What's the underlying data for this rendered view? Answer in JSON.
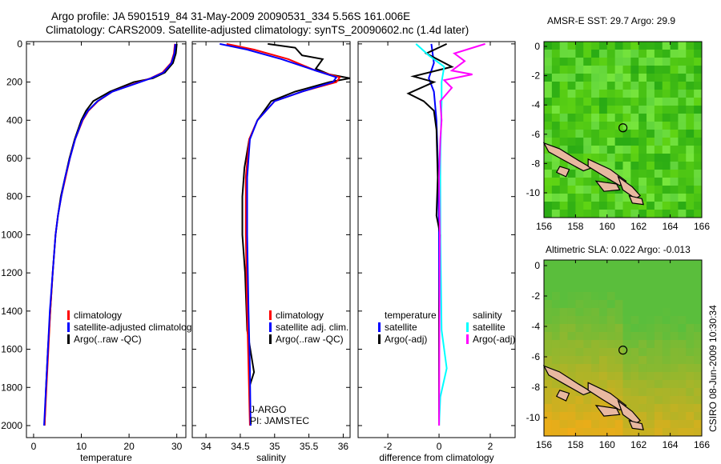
{
  "header": {
    "line1": "Argo profile: JA 5901519_84 31-May-2009 20090531_334 5.56S 161.006E",
    "line2": "Climatology: CARS2009. Satellite-adjusted climatology: synTS_20090602.nc (1.4d later)"
  },
  "footer": {
    "stamp": "CSIRO 08-Jun-2009 10:30:34"
  },
  "chart_data": [
    {
      "type": "line",
      "xlabel": "temperature",
      "xlim": [
        -1.5,
        31.9
      ],
      "ylim": [
        2063,
        -12
      ],
      "xticks": [
        0,
        10,
        20,
        30
      ],
      "yticks": [
        0,
        200,
        400,
        600,
        800,
        1000,
        1200,
        1400,
        1600,
        1800,
        2000
      ],
      "legend": [
        {
          "label": "climatology",
          "color": "#ff0000"
        },
        {
          "label": "satellite-adjusted climatology",
          "color": "#0000ff"
        },
        {
          "label": "Argo(..raw -QC)",
          "color": "#000000"
        }
      ],
      "series": [
        {
          "name": "Argo",
          "color": "#000000",
          "points": [
            [
              30,
              0
            ],
            [
              29.8,
              50
            ],
            [
              29.2,
              100
            ],
            [
              27.5,
              150
            ],
            [
              25,
              180
            ],
            [
              21,
              200
            ],
            [
              16,
              250
            ],
            [
              12.5,
              300
            ],
            [
              11,
              350
            ],
            [
              10,
              400
            ],
            [
              8.6,
              500
            ],
            [
              7.5,
              600
            ],
            [
              6.6,
              700
            ],
            [
              5.7,
              800
            ],
            [
              5.1,
              900
            ],
            [
              4.6,
              1000
            ],
            [
              4,
              1200
            ],
            [
              3.5,
              1400
            ],
            [
              3,
              1600
            ],
            [
              2.6,
              1800
            ],
            [
              2.3,
              2000
            ]
          ]
        },
        {
          "name": "climatology",
          "color": "#ff0000",
          "points": [
            [
              29.6,
              0
            ],
            [
              29.4,
              50
            ],
            [
              28.8,
              100
            ],
            [
              27,
              150
            ],
            [
              24.5,
              180
            ],
            [
              21,
              210
            ],
            [
              16.5,
              250
            ],
            [
              13.5,
              300
            ],
            [
              11.5,
              350
            ],
            [
              10.3,
              400
            ],
            [
              8.7,
              500
            ],
            [
              7.6,
              600
            ],
            [
              6.7,
              700
            ],
            [
              5.8,
              800
            ],
            [
              5.1,
              900
            ],
            [
              4.6,
              1000
            ],
            [
              4,
              1200
            ],
            [
              3.5,
              1400
            ],
            [
              3.1,
              1600
            ],
            [
              2.7,
              1800
            ],
            [
              2.3,
              2000
            ]
          ]
        },
        {
          "name": "satellite",
          "color": "#0000ff",
          "points": [
            [
              29.7,
              0
            ],
            [
              29.5,
              50
            ],
            [
              28.9,
              100
            ],
            [
              27.2,
              150
            ],
            [
              24.6,
              180
            ],
            [
              21.2,
              210
            ],
            [
              16.5,
              250
            ],
            [
              13.4,
              300
            ],
            [
              11.4,
              350
            ],
            [
              10.2,
              400
            ],
            [
              8.7,
              500
            ],
            [
              7.6,
              600
            ],
            [
              6.6,
              700
            ],
            [
              5.8,
              800
            ],
            [
              5.1,
              900
            ],
            [
              4.6,
              1000
            ],
            [
              4,
              1200
            ],
            [
              3.4,
              1400
            ],
            [
              3,
              1600
            ],
            [
              2.6,
              1800
            ],
            [
              2.2,
              2000
            ]
          ]
        }
      ]
    },
    {
      "type": "line",
      "xlabel": "salinity",
      "xlim": [
        33.8,
        36.1
      ],
      "ylim": [
        2063,
        -12
      ],
      "xticks": [
        34,
        34.5,
        35,
        35.5,
        36
      ],
      "legend": [
        {
          "label": "climatology",
          "color": "#ff0000"
        },
        {
          "label": "satellite adj. clim.",
          "color": "#0000ff"
        },
        {
          "label": "Argo(..raw -QC)",
          "color": "#000000"
        }
      ],
      "annotation": [
        "J-ARGO",
        "PI: JAMSTEC"
      ],
      "series": [
        {
          "name": "Argo",
          "color": "#000000",
          "points": [
            [
              34.9,
              0
            ],
            [
              35.3,
              20
            ],
            [
              35.4,
              60
            ],
            [
              35.7,
              80
            ],
            [
              35.6,
              130
            ],
            [
              35.8,
              160
            ],
            [
              36.1,
              180
            ],
            [
              35.8,
              200
            ],
            [
              35.3,
              250
            ],
            [
              34.95,
              300
            ],
            [
              34.75,
              400
            ],
            [
              34.63,
              500
            ],
            [
              34.56,
              650
            ],
            [
              34.53,
              800
            ],
            [
              34.53,
              1000
            ],
            [
              34.57,
              1200
            ],
            [
              34.6,
              1500
            ],
            [
              34.7,
              1720
            ],
            [
              34.63,
              1800
            ],
            [
              34.65,
              2000
            ]
          ]
        },
        {
          "name": "climatology",
          "color": "#ff0000",
          "points": [
            [
              34.3,
              0
            ],
            [
              34.7,
              30
            ],
            [
              35.2,
              80
            ],
            [
              35.6,
              140
            ],
            [
              35.95,
              175
            ],
            [
              35.9,
              200
            ],
            [
              35.4,
              250
            ],
            [
              35,
              300
            ],
            [
              34.75,
              400
            ],
            [
              34.63,
              500
            ],
            [
              34.58,
              700
            ],
            [
              34.58,
              1000
            ],
            [
              34.6,
              1400
            ],
            [
              34.62,
              1700
            ],
            [
              34.64,
              2000
            ]
          ]
        },
        {
          "name": "satellite",
          "color": "#0000ff",
          "points": [
            [
              34.2,
              0
            ],
            [
              34.6,
              30
            ],
            [
              35.1,
              80
            ],
            [
              35.6,
              140
            ],
            [
              35.9,
              175
            ],
            [
              35.85,
              200
            ],
            [
              35.4,
              250
            ],
            [
              35,
              300
            ],
            [
              34.75,
              400
            ],
            [
              34.64,
              500
            ],
            [
              34.6,
              700
            ],
            [
              34.6,
              1000
            ],
            [
              34.62,
              1400
            ],
            [
              34.64,
              1700
            ],
            [
              34.65,
              2000
            ]
          ]
        }
      ]
    },
    {
      "type": "line",
      "xlabel": "difference from climatology",
      "xlim": [
        -3.16,
        2.97
      ],
      "xticks": [
        -2,
        0,
        2
      ],
      "ylim": [
        2063,
        -12
      ],
      "legend": [
        {
          "label": "temperature",
          "color": null
        },
        {
          "label": "satellite",
          "color": "#0000ff"
        },
        {
          "label": "Argo(-adj)",
          "color": "#000000"
        },
        {
          "label": "salinity",
          "color": null
        },
        {
          "label": "satellite",
          "color": "#00ffff"
        },
        {
          "label": "Argo(-adj)",
          "color": "#ff00ff"
        }
      ],
      "series": [
        {
          "name": "temperature satellite",
          "color": "#0000ff",
          "points": [
            [
              -0.3,
              0
            ],
            [
              -0.2,
              100
            ],
            [
              -0.4,
              180
            ],
            [
              -0.2,
              250
            ],
            [
              -0.1,
              400
            ],
            [
              -0.05,
              600
            ],
            [
              0,
              1000
            ],
            [
              0,
              1500
            ],
            [
              0,
              2000
            ]
          ]
        },
        {
          "name": "temperature Argo",
          "color": "#000000",
          "points": [
            [
              0.3,
              0
            ],
            [
              -0.5,
              50
            ],
            [
              0.5,
              120
            ],
            [
              -1,
              170
            ],
            [
              -0.2,
              200
            ],
            [
              -1.2,
              260
            ],
            [
              -0.6,
              300
            ],
            [
              -0.2,
              350
            ],
            [
              -0.1,
              450
            ],
            [
              -0.05,
              700
            ],
            [
              -0.1,
              900
            ],
            [
              0.05,
              1000
            ],
            [
              0,
              1400
            ],
            [
              0,
              2000
            ]
          ]
        },
        {
          "name": "salinity satellite",
          "color": "#00ffff",
          "points": [
            [
              -0.9,
              0
            ],
            [
              -0.4,
              60
            ],
            [
              0.2,
              120
            ],
            [
              0.1,
              200
            ],
            [
              0.1,
              300
            ],
            [
              0.05,
              600
            ],
            [
              0.05,
              1000
            ],
            [
              0.1,
              1500
            ],
            [
              0.3,
              1700
            ],
            [
              0.05,
              1850
            ],
            [
              0,
              2000
            ]
          ]
        },
        {
          "name": "salinity Argo",
          "color": "#ff00ff",
          "points": [
            [
              1.8,
              0
            ],
            [
              0.6,
              50
            ],
            [
              1,
              90
            ],
            [
              0.5,
              140
            ],
            [
              1.3,
              160
            ],
            [
              0.2,
              190
            ],
            [
              0.5,
              230
            ],
            [
              0.05,
              300
            ],
            [
              0.1,
              400
            ],
            [
              0.05,
              500
            ],
            [
              0,
              700
            ],
            [
              0.03,
              1000
            ],
            [
              0,
              2000
            ]
          ]
        }
      ]
    }
  ],
  "maps": [
    {
      "title": "AMSR-E SST: 29.7 Argo: 29.9",
      "xticks": [
        156,
        158,
        160,
        162,
        164,
        166
      ],
      "yticks": [
        0,
        -2,
        -4,
        -6,
        -8,
        -10
      ],
      "palette": "green"
    },
    {
      "title": "Altimetric SLA: 0.022 Argo: -0.013",
      "xticks": [
        156,
        158,
        160,
        162,
        164,
        166
      ],
      "yticks": [
        0,
        -2,
        -4,
        -6,
        -8,
        -10
      ],
      "palette": "yellow"
    }
  ],
  "float_position": {
    "lon": 161.006,
    "lat": -5.56
  }
}
